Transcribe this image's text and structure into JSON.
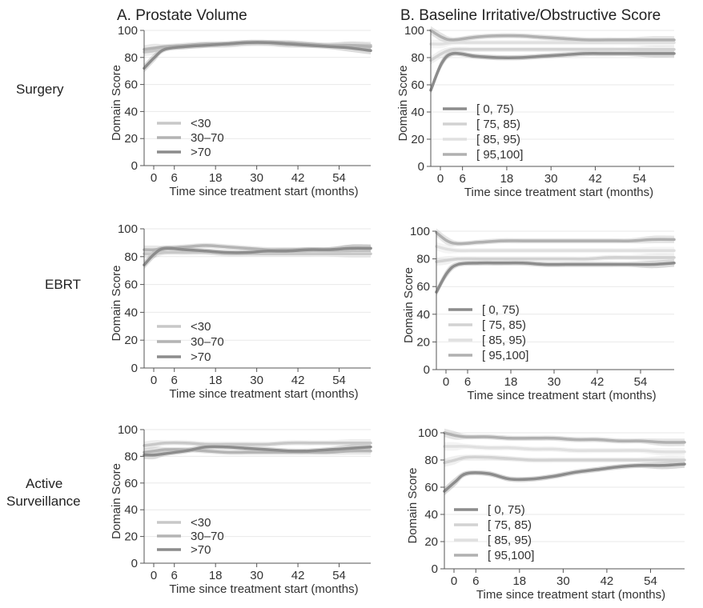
{
  "columns": [
    "A. Prostate Volume",
    "B. Baseline Irritative/Obstructive Score"
  ],
  "rows": [
    "Surgery",
    "EBRT",
    "Active\nSurveillance"
  ],
  "chart_data": [
    {
      "type": "line",
      "panel": "surgery-prostate-volume",
      "xlabel": "Time since treatment start (months)",
      "ylabel": "Domain Score",
      "xlim": [
        0,
        66
      ],
      "ylim": [
        0,
        100
      ],
      "xticks": [
        0,
        6,
        18,
        30,
        42,
        54
      ],
      "yticks": [
        0,
        20,
        40,
        60,
        80,
        100
      ],
      "legend_position": "bottom-left",
      "x": [
        0,
        3,
        6,
        12,
        18,
        24,
        30,
        36,
        42,
        48,
        54,
        60,
        66
      ],
      "series": [
        {
          "name": "<30",
          "color": "#c8c8c8",
          "values": [
            84,
            85,
            87,
            88,
            89,
            89,
            90,
            90,
            89,
            89,
            89,
            89,
            89
          ]
        },
        {
          "name": "30–70",
          "color": "#b4b4b4",
          "values": [
            86,
            87,
            88,
            89,
            90,
            90,
            91,
            91,
            91,
            90,
            89,
            89,
            88
          ]
        },
        {
          "name": ">70",
          "color": "#8c8c8c",
          "values": [
            72,
            80,
            86,
            88,
            89,
            90,
            91,
            91,
            90,
            89,
            88,
            87,
            85
          ]
        }
      ]
    },
    {
      "type": "line",
      "panel": "surgery-baseline-score",
      "xlabel": "Time since treatment start (months)",
      "ylabel": "Domain Score",
      "xlim": [
        0,
        66
      ],
      "ylim": [
        0,
        100
      ],
      "xticks": [
        0,
        6,
        18,
        30,
        42,
        54
      ],
      "yticks": [
        0,
        20,
        40,
        60,
        80,
        100
      ],
      "legend_position": "bottom-left",
      "x": [
        0,
        3,
        6,
        12,
        18,
        24,
        30,
        36,
        42,
        48,
        54,
        60,
        66
      ],
      "series": [
        {
          "name": "[ 0, 75)",
          "color": "#8c8c8c",
          "values": [
            56,
            76,
            83,
            81,
            80,
            80,
            81,
            82,
            83,
            83,
            83,
            83,
            83
          ]
        },
        {
          "name": "[ 75, 85)",
          "color": "#d2d2d2",
          "values": [
            78,
            83,
            86,
            86,
            86,
            86,
            86,
            86,
            86,
            86,
            86,
            86,
            86
          ]
        },
        {
          "name": "[ 85, 95)",
          "color": "#e0e0e0",
          "values": [
            90,
            90,
            91,
            91,
            91,
            91,
            91,
            91,
            91,
            91,
            91,
            91,
            91
          ]
        },
        {
          "name": "[ 95,100]",
          "color": "#b0b0b0",
          "values": [
            100,
            95,
            93,
            95,
            96,
            96,
            95,
            94,
            93,
            93,
            93,
            93,
            93
          ]
        }
      ]
    },
    {
      "type": "line",
      "panel": "ebrt-prostate-volume",
      "xlabel": "Time since treatment start (months)",
      "ylabel": "Domain Score",
      "xlim": [
        0,
        66
      ],
      "ylim": [
        0,
        100
      ],
      "xticks": [
        0,
        6,
        18,
        30,
        42,
        54
      ],
      "yticks": [
        0,
        20,
        40,
        60,
        80,
        100
      ],
      "legend_position": "bottom-left",
      "x": [
        0,
        3,
        6,
        12,
        18,
        24,
        30,
        36,
        42,
        48,
        54,
        60,
        66
      ],
      "series": [
        {
          "name": "<30",
          "color": "#c8c8c8",
          "values": [
            82,
            82,
            83,
            83,
            83,
            82,
            82,
            82,
            82,
            82,
            82,
            82,
            82
          ]
        },
        {
          "name": "30–70",
          "color": "#b4b4b4",
          "values": [
            85,
            85,
            86,
            87,
            88,
            87,
            86,
            85,
            85,
            85,
            85,
            86,
            86
          ]
        },
        {
          "name": ">70",
          "color": "#8c8c8c",
          "values": [
            74,
            82,
            86,
            85,
            84,
            83,
            83,
            84,
            84,
            85,
            85,
            86,
            86
          ]
        }
      ]
    },
    {
      "type": "line",
      "panel": "ebrt-baseline-score",
      "xlabel": "Time since treatment start (months)",
      "ylabel": "Domain Score",
      "xlim": [
        0,
        66
      ],
      "ylim": [
        0,
        100
      ],
      "xticks": [
        0,
        6,
        18,
        30,
        42,
        54
      ],
      "yticks": [
        0,
        20,
        40,
        60,
        80,
        100
      ],
      "legend_position": "bottom-left",
      "x": [
        0,
        3,
        6,
        12,
        18,
        24,
        30,
        36,
        42,
        48,
        54,
        60,
        66
      ],
      "series": [
        {
          "name": "[ 0, 75)",
          "color": "#8c8c8c",
          "values": [
            56,
            70,
            76,
            77,
            77,
            77,
            76,
            76,
            76,
            76,
            76,
            76,
            77
          ]
        },
        {
          "name": "[ 75, 85)",
          "color": "#d2d2d2",
          "values": [
            78,
            79,
            80,
            80,
            80,
            80,
            80,
            80,
            80,
            81,
            81,
            81,
            81
          ]
        },
        {
          "name": "[ 85, 95)",
          "color": "#e0e0e0",
          "values": [
            89,
            87,
            86,
            86,
            86,
            86,
            86,
            86,
            86,
            86,
            86,
            86,
            86
          ]
        },
        {
          "name": "[ 95,100]",
          "color": "#b0b0b0",
          "values": [
            99,
            93,
            91,
            92,
            93,
            93,
            93,
            93,
            93,
            93,
            93,
            94,
            94
          ]
        }
      ]
    },
    {
      "type": "line",
      "panel": "as-prostate-volume",
      "xlabel": "Time since treatment start (months)",
      "ylabel": "Domain Score",
      "xlim": [
        0,
        66
      ],
      "ylim": [
        0,
        100
      ],
      "xticks": [
        0,
        6,
        18,
        30,
        42,
        54
      ],
      "yticks": [
        0,
        20,
        40,
        60,
        80,
        100
      ],
      "legend_position": "bottom-left",
      "x": [
        0,
        3,
        6,
        12,
        18,
        24,
        30,
        36,
        42,
        48,
        54,
        60,
        66
      ],
      "series": [
        {
          "name": "<30",
          "color": "#c8c8c8",
          "values": [
            88,
            89,
            90,
            90,
            89,
            89,
            89,
            89,
            90,
            90,
            90,
            90,
            90
          ]
        },
        {
          "name": "30–70",
          "color": "#b4b4b4",
          "values": [
            83,
            84,
            85,
            85,
            84,
            83,
            83,
            83,
            83,
            83,
            83,
            84,
            84
          ]
        },
        {
          "name": ">70",
          "color": "#8c8c8c",
          "values": [
            81,
            81,
            82,
            84,
            87,
            87,
            86,
            85,
            84,
            84,
            85,
            86,
            87
          ]
        }
      ]
    },
    {
      "type": "line",
      "panel": "as-baseline-score",
      "xlabel": "Time since treatment start (months)",
      "ylabel": "Domain Score",
      "xlim": [
        0,
        66
      ],
      "ylim": [
        0,
        100
      ],
      "xticks": [
        0,
        6,
        18,
        30,
        42,
        54
      ],
      "yticks": [
        0,
        20,
        40,
        60,
        80,
        100
      ],
      "legend_position": "bottom-left",
      "x": [
        0,
        3,
        6,
        12,
        18,
        24,
        30,
        36,
        42,
        48,
        54,
        60,
        66
      ],
      "series": [
        {
          "name": "[ 0, 75)",
          "color": "#8c8c8c",
          "values": [
            57,
            64,
            70,
            70,
            66,
            66,
            68,
            71,
            73,
            75,
            76,
            76,
            77
          ]
        },
        {
          "name": "[ 75, 85)",
          "color": "#d2d2d2",
          "values": [
            78,
            80,
            82,
            82,
            81,
            80,
            80,
            80,
            80,
            80,
            80,
            80,
            80
          ]
        },
        {
          "name": "[ 85, 95)",
          "color": "#e0e0e0",
          "values": [
            90,
            90,
            90,
            89,
            89,
            88,
            88,
            87,
            87,
            87,
            87,
            86,
            86
          ]
        },
        {
          "name": "[ 95,100]",
          "color": "#b0b0b0",
          "values": [
            100,
            98,
            97,
            97,
            96,
            96,
            96,
            95,
            95,
            94,
            94,
            93,
            93
          ]
        }
      ]
    }
  ]
}
